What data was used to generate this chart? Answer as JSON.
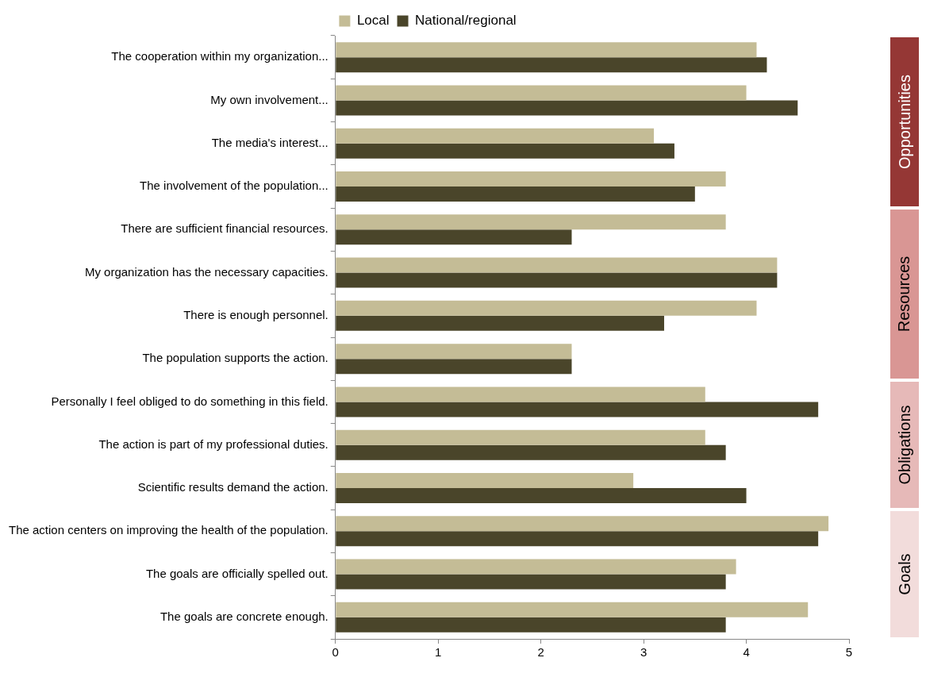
{
  "chart_data": {
    "type": "bar",
    "orientation": "horizontal",
    "categories": [
      "The cooperation within my organization...",
      "My own involvement...",
      "The media's interest...",
      "The involvement of the population...",
      "There are sufficient financial resources.",
      "My organization has the necessary capacities.",
      "There is enough personnel.",
      "The population supports the action.",
      "Personally I feel obliged to do something in this field.",
      "The action is part of my professional duties.",
      "Scientific results demand the action.",
      "The action centers on improving the health of the population.",
      "The goals are officially spelled out.",
      "The goals are concrete enough."
    ],
    "series": [
      {
        "name": "Local",
        "color": "#c4bc96",
        "values": [
          4.1,
          4.0,
          3.1,
          3.8,
          3.8,
          4.3,
          4.1,
          2.3,
          3.6,
          3.6,
          2.9,
          4.8,
          3.9,
          4.6
        ]
      },
      {
        "name": "National/regional",
        "color": "#4a452a",
        "values": [
          4.2,
          4.5,
          3.3,
          3.5,
          2.3,
          4.3,
          3.2,
          2.3,
          4.7,
          3.8,
          4.0,
          4.7,
          3.8,
          3.8
        ]
      }
    ],
    "xlim": [
      0,
      5
    ],
    "xticks": [
      0,
      1,
      2,
      3,
      4,
      5
    ],
    "grid": false,
    "legend": "top",
    "annotations": [
      "Opportunities",
      "Resources",
      "Obligations",
      "Goals"
    ]
  }
}
